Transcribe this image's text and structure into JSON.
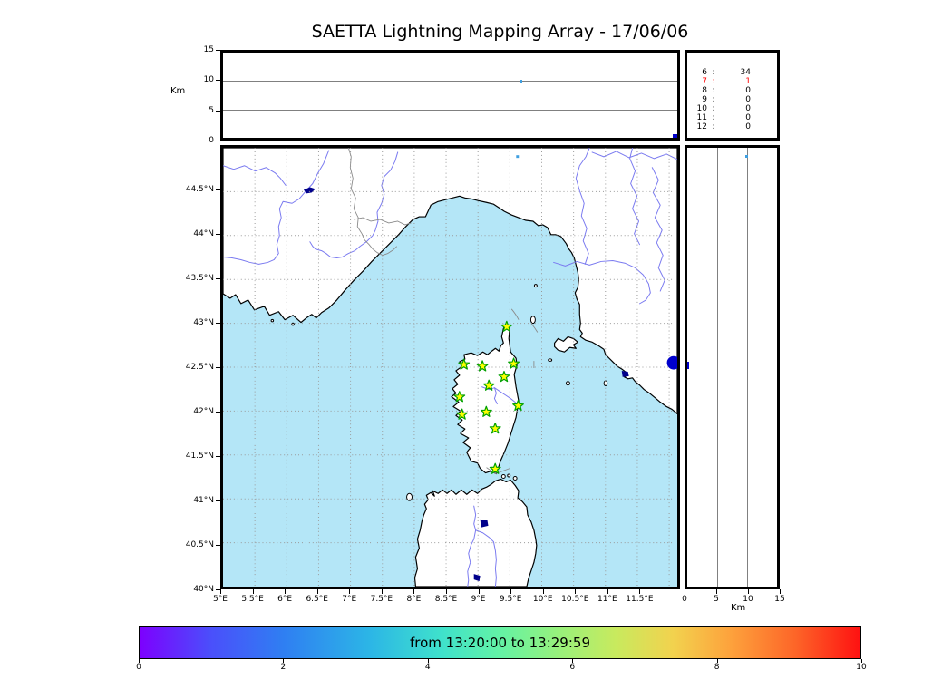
{
  "title": "SAETTA Lightning Mapping Array - 17/06/06",
  "colors": {
    "sea": "#b4e6f7",
    "land": "#ffffff",
    "coastline": "#000000",
    "river": "#7a7af0",
    "lake": "#00008b",
    "grid": "#999999",
    "station_fill": "#ffff00",
    "station_stroke": "#00a000",
    "source_single": "#3f9fe0",
    "source_cluster": "#0000cc",
    "stats_highlight": "#ff0000"
  },
  "top_panel": {
    "ylabel": "Km",
    "yticks": [
      {
        "label": "15",
        "km": 15
      },
      {
        "label": "10",
        "km": 10
      },
      {
        "label": "5",
        "km": 5
      },
      {
        "label": "0",
        "km": 0
      }
    ],
    "gridlines_km": [
      5,
      10
    ]
  },
  "station_stats": {
    "rows": [
      {
        "station": "6",
        "colon": ":",
        "count": "34",
        "color": "#000000"
      },
      {
        "station": "7",
        "colon": ":",
        "count": "1",
        "color": "#ff0000"
      },
      {
        "station": "8",
        "colon": ":",
        "count": "0",
        "color": "#000000"
      },
      {
        "station": "9",
        "colon": ":",
        "count": "0",
        "color": "#000000"
      },
      {
        "station": "10",
        "colon": ":",
        "count": "0",
        "color": "#000000"
      },
      {
        "station": "11",
        "colon": ":",
        "count": "0",
        "color": "#000000"
      },
      {
        "station": "12",
        "colon": ":",
        "count": "0",
        "color": "#000000"
      }
    ]
  },
  "map": {
    "lat_ticks": [
      {
        "label": "44.5°N",
        "lat": 44.5
      },
      {
        "label": "44°N",
        "lat": 44.0
      },
      {
        "label": "43.5°N",
        "lat": 43.5
      },
      {
        "label": "43°N",
        "lat": 43.0
      },
      {
        "label": "42.5°N",
        "lat": 42.5
      },
      {
        "label": "42°N",
        "lat": 42.0
      },
      {
        "label": "41.5°N",
        "lat": 41.5
      },
      {
        "label": "41°N",
        "lat": 41.0
      },
      {
        "label": "40.5°N",
        "lat": 40.5
      },
      {
        "label": "40°N",
        "lat": 40.0
      }
    ],
    "lon_ticks": [
      {
        "label": "5°E",
        "lon": 5.0
      },
      {
        "label": "5.5°E",
        "lon": 5.5
      },
      {
        "label": "6°E",
        "lon": 6.0
      },
      {
        "label": "6.5°E",
        "lon": 6.5
      },
      {
        "label": "7°E",
        "lon": 7.0
      },
      {
        "label": "7.5°E",
        "lon": 7.5
      },
      {
        "label": "8°E",
        "lon": 8.0
      },
      {
        "label": "8.5°E",
        "lon": 8.5
      },
      {
        "label": "9°E",
        "lon": 9.0
      },
      {
        "label": "9.5°E",
        "lon": 9.5
      },
      {
        "label": "10°E",
        "lon": 10.0
      },
      {
        "label": "10.5°E",
        "lon": 10.5
      },
      {
        "label": "11°E",
        "lon": 11.0
      },
      {
        "label": "11.5°E",
        "lon": 11.5
      },
      {
        "label": "",
        "lon": 12.0
      }
    ]
  },
  "right_panel": {
    "xlabel": "Km",
    "xticks": [
      {
        "label": "0",
        "km": 0
      },
      {
        "label": "5",
        "km": 5
      },
      {
        "label": "10",
        "km": 10
      },
      {
        "label": "15",
        "km": 15
      }
    ],
    "gridlines_km": [
      5,
      10
    ]
  },
  "colorbar": {
    "label": "from 13:20:00 to 13:29:59",
    "ticks": [
      {
        "label": "0",
        "v": 0
      },
      {
        "label": "2",
        "v": 2
      },
      {
        "label": "4",
        "v": 4
      },
      {
        "label": "6",
        "v": 6
      },
      {
        "label": "8",
        "v": 8
      },
      {
        "label": "10",
        "v": 10
      }
    ],
    "gradient": [
      "#7d00fe 0%",
      "#4a50fb 10%",
      "#2f7ff2 20%",
      "#2cb6e6 32%",
      "#3fe2cb 42%",
      "#63f2a5 50%",
      "#97f17c 58%",
      "#c8ea5e 66%",
      "#f2d24e 74%",
      "#fda23c 82%",
      "#fd6528 91%",
      "#fe1111 100%"
    ]
  },
  "chart_data": {
    "type": "scatter",
    "title": "SAETTA Lightning Mapping Array - 17/06/06",
    "time_window": {
      "from": "13:20:00",
      "to": "13:29:59",
      "colorbar_ticks_min": [
        0,
        2,
        4,
        6,
        8,
        10
      ],
      "cmap": "rainbow"
    },
    "panels": {
      "alt_vs_lon": {
        "ylabel": "Km",
        "ylim_km": [
          0,
          15
        ],
        "yticks": [
          0,
          5,
          10,
          15
        ],
        "xlim_lon_e": [
          5.0,
          12.13
        ],
        "grid": "horizontal at 5,10 km"
      },
      "map": {
        "xlim_lon_e": [
          5.0,
          12.13
        ],
        "ylim_lat_n": [
          40.0,
          45.0
        ],
        "grid": "dashed 0.5 deg",
        "region": "Corsica / Ligurian Sea / Sardinia / Tuscany"
      },
      "alt_vs_lat": {
        "xlabel": "Km",
        "xlim_km": [
          0,
          15
        ],
        "xticks": [
          0,
          5,
          10,
          15
        ],
        "grid": "vertical at 5,10 km"
      }
    },
    "stations_contributing_histogram": [
      {
        "n_stations": 6,
        "n_sources": 34
      },
      {
        "n_stations": 7,
        "n_sources": 1
      },
      {
        "n_stations": 8,
        "n_sources": 0
      },
      {
        "n_stations": 9,
        "n_sources": 0
      },
      {
        "n_stations": 10,
        "n_sources": 0
      },
      {
        "n_stations": 11,
        "n_sources": 0
      },
      {
        "n_stations": 12,
        "n_sources": 0
      }
    ],
    "lma_stations_lon_lat": [
      [
        9.45,
        42.96
      ],
      [
        8.78,
        42.53
      ],
      [
        9.07,
        42.51
      ],
      [
        9.56,
        42.54
      ],
      [
        9.41,
        42.39
      ],
      [
        9.17,
        42.29
      ],
      [
        8.71,
        42.16
      ],
      [
        9.63,
        42.06
      ],
      [
        8.75,
        41.96
      ],
      [
        9.13,
        41.99
      ],
      [
        9.27,
        41.8
      ],
      [
        9.27,
        41.34
      ]
    ],
    "sources": [
      {
        "lon": 9.62,
        "lat": 44.9,
        "alt_km": 9.9,
        "color": "#3f9fe0",
        "marker": "small-square"
      },
      {
        "lon": 12.07,
        "lat": 42.55,
        "alt_km": 0.4,
        "color": "#0000cc",
        "marker": "large-circle-clipped-at-edge"
      }
    ]
  }
}
